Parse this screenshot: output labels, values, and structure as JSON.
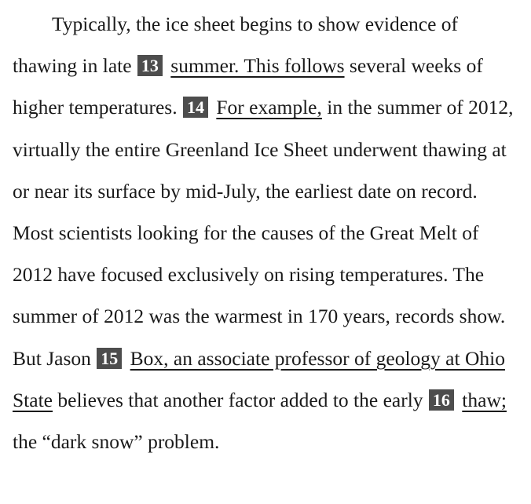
{
  "passage": {
    "s1": "Typically, the ice sheet begins to show evidence of thawing in late",
    "q13": {
      "num": "13",
      "text": "summer. This follows"
    },
    "s2": "several weeks of higher temperatures.",
    "q14": {
      "num": "14",
      "text": "For example,"
    },
    "s3": "in the summer of 2012, virtually the entire Greenland Ice Sheet underwent thawing at or near its surface by mid-July, the earliest date on record. Most scientists looking for the causes of the Great Melt of 2012 have focused exclusively on rising temperatures. The summer of 2012 was the warmest in 170 years, records show. But Jason",
    "q15": {
      "num": "15",
      "text": "Box, an associate professor of geology at Ohio State"
    },
    "s4": "believes that another factor added to the early",
    "q16": {
      "num": "16",
      "text": "thaw;"
    },
    "s5": "the “dark snow” problem."
  }
}
